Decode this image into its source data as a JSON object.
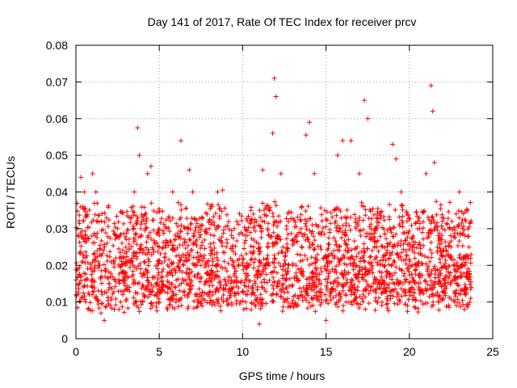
{
  "chart_data": {
    "type": "scatter",
    "title": "Day 141 of 2017, Rate Of TEC Index for receiver prcv",
    "xlabel": "GPS time / hours",
    "ylabel": "ROTI / TECUs",
    "xlim": [
      0,
      25
    ],
    "ylim": [
      0,
      0.08
    ],
    "xticks": [
      "0",
      "5",
      "10",
      "15",
      "20",
      "25"
    ],
    "yticks": [
      "0",
      "0.01",
      "0.02",
      "0.03",
      "0.04",
      "0.05",
      "0.06",
      "0.07",
      "0.08"
    ],
    "grid": true,
    "marker": "+",
    "color": "#ff0000",
    "x_range_observed": [
      0,
      23.7
    ],
    "typical_band": [
      0.01,
      0.035
    ],
    "series": [
      {
        "points": [
          [
            0.0,
            0.016
          ],
          [
            0.1,
            0.03
          ],
          [
            0.3,
            0.044
          ],
          [
            0.5,
            0.04
          ],
          [
            0.8,
            0.012
          ],
          [
            1.0,
            0.045
          ],
          [
            1.2,
            0.04
          ],
          [
            1.5,
            0.007
          ],
          [
            1.7,
            0.005
          ],
          [
            2.0,
            0.015
          ],
          [
            2.5,
            0.03
          ],
          [
            3.0,
            0.02
          ],
          [
            3.5,
            0.04
          ],
          [
            3.7,
            0.0575
          ],
          [
            3.8,
            0.05
          ],
          [
            4.0,
            0.01
          ],
          [
            4.3,
            0.045
          ],
          [
            4.5,
            0.047
          ],
          [
            5.0,
            0.025
          ],
          [
            5.5,
            0.008
          ],
          [
            5.8,
            0.04
          ],
          [
            6.0,
            0.01
          ],
          [
            6.3,
            0.054
          ],
          [
            6.8,
            0.046
          ],
          [
            7.0,
            0.04
          ],
          [
            7.5,
            0.02
          ],
          [
            8.0,
            0.03
          ],
          [
            8.5,
            0.04
          ],
          [
            8.8,
            0.0405
          ],
          [
            9.0,
            0.015
          ],
          [
            9.5,
            0.03
          ],
          [
            10.0,
            0.02
          ],
          [
            10.5,
            0.035
          ],
          [
            10.9,
            0.01
          ],
          [
            11.0,
            0.004
          ],
          [
            11.2,
            0.046
          ],
          [
            11.5,
            0.03
          ],
          [
            11.8,
            0.056
          ],
          [
            11.9,
            0.071
          ],
          [
            12.0,
            0.066
          ],
          [
            12.3,
            0.045
          ],
          [
            12.5,
            0.01
          ],
          [
            13.0,
            0.02
          ],
          [
            13.5,
            0.03
          ],
          [
            13.8,
            0.0555
          ],
          [
            14.0,
            0.059
          ],
          [
            14.3,
            0.045
          ],
          [
            14.7,
            0.015
          ],
          [
            15.0,
            0.005
          ],
          [
            15.5,
            0.035
          ],
          [
            15.7,
            0.05
          ],
          [
            16.0,
            0.054
          ],
          [
            16.5,
            0.054
          ],
          [
            16.8,
            0.03
          ],
          [
            17.0,
            0.045
          ],
          [
            17.3,
            0.065
          ],
          [
            17.5,
            0.06
          ],
          [
            18.0,
            0.03
          ],
          [
            18.5,
            0.015
          ],
          [
            19.0,
            0.053
          ],
          [
            19.2,
            0.049
          ],
          [
            19.5,
            0.04
          ],
          [
            20.0,
            0.02
          ],
          [
            20.5,
            0.03
          ],
          [
            21.0,
            0.045
          ],
          [
            21.3,
            0.069
          ],
          [
            21.4,
            0.062
          ],
          [
            21.5,
            0.048
          ],
          [
            22.0,
            0.03
          ],
          [
            22.5,
            0.025
          ],
          [
            23.0,
            0.04
          ],
          [
            23.3,
            0.008
          ],
          [
            23.5,
            0.035
          ],
          [
            23.7,
            0.014
          ]
        ]
      }
    ]
  }
}
